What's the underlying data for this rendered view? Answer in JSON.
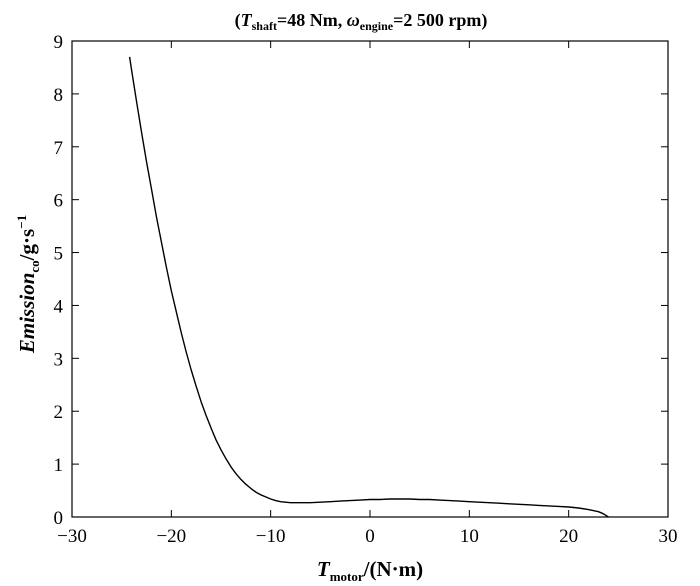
{
  "chart_data": {
    "type": "line",
    "title": {
      "open": "(",
      "t_var": "T",
      "t_sub": "shaft",
      "t_rest": "=48 Nm, ",
      "w_var": "ω",
      "w_sub": "engine",
      "w_rest": "=2 500 rpm)"
    },
    "xlabel": {
      "var": "T",
      "sub": "motor",
      "unit": "/(N·m)"
    },
    "ylabel": {
      "var": "Emission",
      "sub": "co",
      "unit": "/g·s",
      "sup": "−1"
    },
    "xlim": [
      -30,
      30
    ],
    "ylim": [
      0,
      9
    ],
    "x_ticks": [
      "−30",
      "−20",
      "−10",
      "0",
      "10",
      "20",
      "30"
    ],
    "y_ticks": [
      "0",
      "1",
      "2",
      "3",
      "4",
      "5",
      "6",
      "7",
      "8",
      "9"
    ],
    "grid": false,
    "series": [
      {
        "x": [
          -24.2,
          -24,
          -23.5,
          -23,
          -22.5,
          -22,
          -21.5,
          -21,
          -20.5,
          -20,
          -19.5,
          -19,
          -18.5,
          -18,
          -17.5,
          -17,
          -16.5,
          -16,
          -15.5,
          -15,
          -14.5,
          -14,
          -13.5,
          -13,
          -12.5,
          -12,
          -11.5,
          -11,
          -10.5,
          -10,
          -9.5,
          -9,
          -8.5,
          -8,
          -7.5,
          -7,
          -6,
          -5,
          -4,
          -3,
          -2,
          -1,
          0,
          1,
          2,
          3,
          4,
          5,
          6,
          7,
          8,
          9,
          10,
          11,
          12,
          13,
          14,
          15,
          16,
          17,
          18,
          19,
          20,
          21,
          22,
          23,
          23.5,
          24
        ],
        "y": [
          8.7,
          8.45,
          7.85,
          7.28,
          6.72,
          6.2,
          5.68,
          5.2,
          4.72,
          4.28,
          3.88,
          3.48,
          3.12,
          2.78,
          2.47,
          2.18,
          1.92,
          1.68,
          1.46,
          1.27,
          1.1,
          0.95,
          0.82,
          0.71,
          0.62,
          0.54,
          0.47,
          0.42,
          0.38,
          0.34,
          0.31,
          0.29,
          0.28,
          0.27,
          0.27,
          0.27,
          0.27,
          0.28,
          0.29,
          0.3,
          0.31,
          0.32,
          0.33,
          0.33,
          0.34,
          0.34,
          0.34,
          0.33,
          0.33,
          0.32,
          0.31,
          0.3,
          0.29,
          0.28,
          0.27,
          0.26,
          0.25,
          0.24,
          0.23,
          0.22,
          0.21,
          0.2,
          0.19,
          0.17,
          0.14,
          0.1,
          0.06,
          0.0
        ]
      }
    ]
  }
}
